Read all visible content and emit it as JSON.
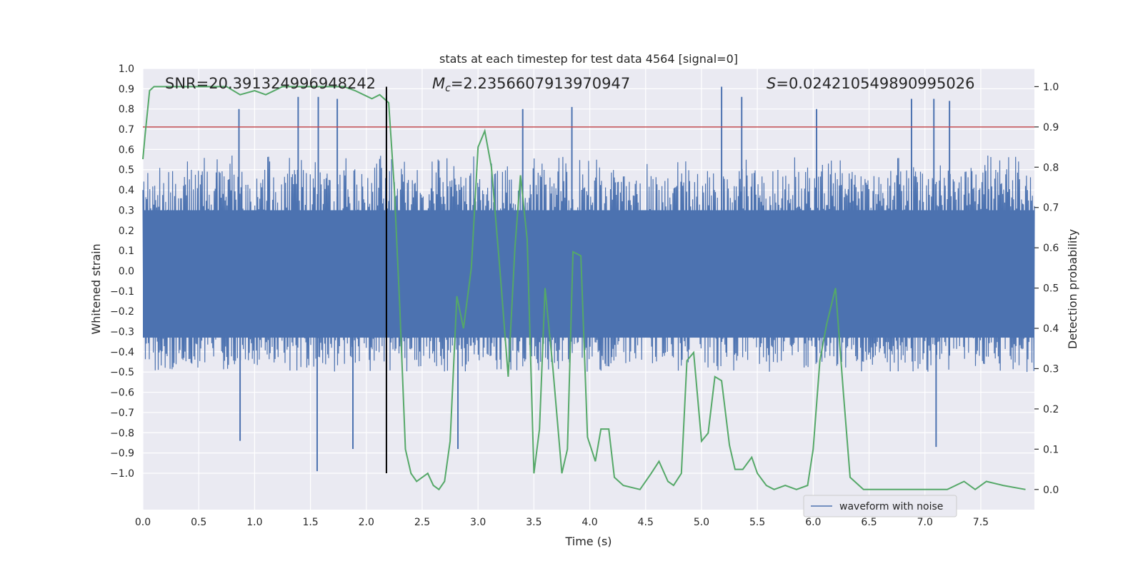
{
  "chart_data": {
    "type": "line",
    "title": "stats at each timestep for test data 4564 [signal=0]",
    "xlabel": "Time (s)",
    "ylabel": "Whitened strain",
    "ylabel_right": "Detection probability",
    "xlim": [
      0.0,
      7.98
    ],
    "ylim": [
      -1.18,
      1.0
    ],
    "ylim_right": [
      -0.05,
      1.045
    ],
    "x_ticks": [
      0.0,
      0.5,
      1.0,
      1.5,
      2.0,
      2.5,
      3.0,
      3.5,
      4.0,
      4.5,
      5.0,
      5.5,
      6.0,
      6.5,
      7.0,
      7.5
    ],
    "x_tick_labels": [
      "0.0",
      "0.5",
      "1.0",
      "1.5",
      "2.0",
      "2.5",
      "3.0",
      "3.5",
      "4.0",
      "4.5",
      "5.0",
      "5.5",
      "6.0",
      "6.5",
      "7.0",
      "7.5"
    ],
    "y_ticks": [
      1.0,
      0.9,
      0.8,
      0.7,
      0.6,
      0.5,
      0.4,
      0.3,
      0.2,
      0.1,
      0.0,
      -0.1,
      -0.2,
      -0.3,
      -0.4,
      -0.5,
      -0.6,
      -0.7,
      -0.8,
      -0.9,
      -1.0
    ],
    "y_tick_labels": [
      "1.0",
      "0.9",
      "0.8",
      "0.7",
      "0.6",
      "0.5",
      "0.4",
      "0.3",
      "0.2",
      "0.1",
      "0.0",
      "−0.1",
      "−0.2",
      "−0.3",
      "−0.4",
      "−0.5",
      "−0.6",
      "−0.7",
      "−0.8",
      "−0.9",
      "−1.0"
    ],
    "y_right_ticks": [
      1.0,
      0.9,
      0.8,
      0.7,
      0.6,
      0.5,
      0.4,
      0.3,
      0.2,
      0.1,
      0.0
    ],
    "y_right_tick_labels": [
      "1.0",
      "0.9",
      "0.8",
      "0.7",
      "0.6",
      "0.5",
      "0.4",
      "0.3",
      "0.2",
      "0.1",
      "0.0"
    ],
    "annotations": {
      "snr": "SNR=20.391324996948242",
      "mc_symbol": "M",
      "mc_subscript": "c",
      "mc_value": "=2.2356607913970947",
      "s_symbol": "S",
      "s_value": "=0.024210549890995026"
    },
    "legend": {
      "label": "waveform with noise",
      "location": "lower-right"
    },
    "waveform": {
      "name": "waveform with noise",
      "color": "#4c72b0",
      "x_range": [
        0.0,
        7.98
      ],
      "band_max": 0.53,
      "band_min": -0.42,
      "peak_spikes": [
        [
          0.86,
          0.8
        ],
        [
          1.39,
          0.86
        ],
        [
          1.57,
          0.86
        ],
        [
          1.74,
          0.85
        ],
        [
          2.18,
          0.86
        ],
        [
          3.4,
          0.8
        ],
        [
          3.84,
          0.81
        ],
        [
          5.18,
          0.91
        ],
        [
          5.36,
          0.86
        ],
        [
          6.03,
          0.8
        ],
        [
          6.88,
          0.85
        ],
        [
          7.08,
          0.85
        ],
        [
          7.22,
          0.84
        ]
      ],
      "trough_spikes": [
        [
          0.87,
          -0.84
        ],
        [
          1.56,
          -0.99
        ],
        [
          1.88,
          -0.88
        ],
        [
          2.82,
          -0.88
        ],
        [
          7.1,
          -0.87
        ]
      ]
    },
    "probability": {
      "name": "detection probability",
      "axis": "right",
      "color": "#55a868",
      "points": [
        [
          0.0,
          0.82
        ],
        [
          0.02,
          0.88
        ],
        [
          0.06,
          0.99
        ],
        [
          0.1,
          1.0
        ],
        [
          0.2,
          1.0
        ],
        [
          0.4,
          1.0
        ],
        [
          0.6,
          1.0
        ],
        [
          0.75,
          1.0
        ],
        [
          0.87,
          0.98
        ],
        [
          1.0,
          0.99
        ],
        [
          1.1,
          0.98
        ],
        [
          1.25,
          1.0
        ],
        [
          1.4,
          1.0
        ],
        [
          1.6,
          1.0
        ],
        [
          1.8,
          1.0
        ],
        [
          1.9,
          0.99
        ],
        [
          2.05,
          0.97
        ],
        [
          2.12,
          0.98
        ],
        [
          2.2,
          0.96
        ],
        [
          2.25,
          0.75
        ],
        [
          2.3,
          0.45
        ],
        [
          2.35,
          0.1
        ],
        [
          2.4,
          0.04
        ],
        [
          2.45,
          0.02
        ],
        [
          2.5,
          0.03
        ],
        [
          2.55,
          0.04
        ],
        [
          2.6,
          0.01
        ],
        [
          2.65,
          0.0
        ],
        [
          2.7,
          0.02
        ],
        [
          2.75,
          0.12
        ],
        [
          2.81,
          0.48
        ],
        [
          2.87,
          0.4
        ],
        [
          2.94,
          0.55
        ],
        [
          3.0,
          0.85
        ],
        [
          3.06,
          0.89
        ],
        [
          3.12,
          0.8
        ],
        [
          3.2,
          0.53
        ],
        [
          3.27,
          0.28
        ],
        [
          3.33,
          0.6
        ],
        [
          3.38,
          0.78
        ],
        [
          3.44,
          0.62
        ],
        [
          3.5,
          0.04
        ],
        [
          3.55,
          0.15
        ],
        [
          3.6,
          0.5
        ],
        [
          3.67,
          0.3
        ],
        [
          3.75,
          0.04
        ],
        [
          3.8,
          0.1
        ],
        [
          3.85,
          0.59
        ],
        [
          3.92,
          0.58
        ],
        [
          3.98,
          0.13
        ],
        [
          4.05,
          0.07
        ],
        [
          4.1,
          0.15
        ],
        [
          4.17,
          0.15
        ],
        [
          4.22,
          0.03
        ],
        [
          4.3,
          0.01
        ],
        [
          4.45,
          0.0
        ],
        [
          4.55,
          0.04
        ],
        [
          4.62,
          0.07
        ],
        [
          4.7,
          0.02
        ],
        [
          4.75,
          0.01
        ],
        [
          4.82,
          0.04
        ],
        [
          4.87,
          0.32
        ],
        [
          4.93,
          0.34
        ],
        [
          5.0,
          0.12
        ],
        [
          5.06,
          0.14
        ],
        [
          5.12,
          0.28
        ],
        [
          5.18,
          0.27
        ],
        [
          5.25,
          0.11
        ],
        [
          5.3,
          0.05
        ],
        [
          5.37,
          0.05
        ],
        [
          5.45,
          0.08
        ],
        [
          5.5,
          0.04
        ],
        [
          5.58,
          0.01
        ],
        [
          5.65,
          0.0
        ],
        [
          5.75,
          0.01
        ],
        [
          5.85,
          0.0
        ],
        [
          5.95,
          0.01
        ],
        [
          6.0,
          0.1
        ],
        [
          6.06,
          0.32
        ],
        [
          6.12,
          0.41
        ],
        [
          6.2,
          0.5
        ],
        [
          6.27,
          0.24
        ],
        [
          6.33,
          0.03
        ],
        [
          6.45,
          0.0
        ],
        [
          6.6,
          0.0
        ],
        [
          6.8,
          0.0
        ],
        [
          7.0,
          0.0
        ],
        [
          7.2,
          0.0
        ],
        [
          7.35,
          0.02
        ],
        [
          7.45,
          0.0
        ],
        [
          7.55,
          0.02
        ],
        [
          7.7,
          0.01
        ],
        [
          7.9,
          0.0
        ]
      ]
    },
    "threshold": {
      "value": 0.9,
      "axis": "right",
      "color": "#c44e52"
    },
    "marker": {
      "x": 2.18,
      "y_range": [
        -1.0,
        0.91
      ],
      "color": "#000000"
    },
    "grid": true,
    "background": "#eaeaf2"
  }
}
